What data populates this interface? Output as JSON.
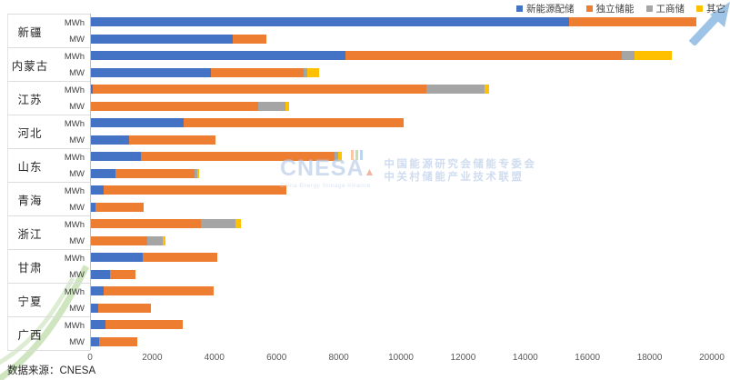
{
  "legend": {
    "items": [
      {
        "label": "新能源配储",
        "color": "#4472C4"
      },
      {
        "label": "独立储能",
        "color": "#ED7D31"
      },
      {
        "label": "工商储",
        "color": "#A5A5A5"
      },
      {
        "label": "其它",
        "color": "#FFC000"
      }
    ]
  },
  "source_note": "数据来源：CNESA",
  "watermark": {
    "logo": "CNESA",
    "logo_sub": "China Energy Storage Alliance",
    "line1": "中国能源研究会储能专委会",
    "line2": "中关村储能产业技术联盟"
  },
  "chart_data": {
    "type": "bar",
    "orientation": "horizontal",
    "stacked": true,
    "grid": false,
    "legend_position": "top-right",
    "series_names": [
      "新能源配储",
      "独立储能",
      "工商储",
      "其它"
    ],
    "colors": [
      "#4472C4",
      "#ED7D31",
      "#A5A5A5",
      "#FFC000"
    ],
    "x_axis": {
      "min": 0,
      "max": 20000,
      "tick_step": 2000,
      "ticks": [
        0,
        2000,
        4000,
        6000,
        8000,
        10000,
        12000,
        14000,
        16000,
        18000,
        20000
      ]
    },
    "row_units": [
      "MWh",
      "MW"
    ],
    "provinces": [
      {
        "name": "新疆",
        "rows": [
          {
            "unit": "MWh",
            "values": [
              15400,
              4100,
              0,
              0
            ]
          },
          {
            "unit": "MW",
            "values": [
              4560,
              1080,
              0,
              0
            ]
          }
        ]
      },
      {
        "name": "内蒙古",
        "rows": [
          {
            "unit": "MWh",
            "values": [
              8200,
              8900,
              400,
              1200
            ]
          },
          {
            "unit": "MW",
            "values": [
              3860,
              3000,
              100,
              380
            ]
          }
        ]
      },
      {
        "name": "江苏",
        "rows": [
          {
            "unit": "MWh",
            "values": [
              60,
              10750,
              1880,
              150
            ]
          },
          {
            "unit": "MW",
            "values": [
              0,
              5380,
              900,
              90
            ]
          }
        ]
      },
      {
        "name": "河北",
        "rows": [
          {
            "unit": "MWh",
            "values": [
              2980,
              7080,
              0,
              0
            ]
          },
          {
            "unit": "MW",
            "values": [
              1230,
              2770,
              0,
              0
            ]
          }
        ]
      },
      {
        "name": "山东",
        "rows": [
          {
            "unit": "MWh",
            "values": [
              1600,
              6250,
              120,
              110
            ]
          },
          {
            "unit": "MW",
            "values": [
              800,
              2530,
              85,
              80
            ]
          }
        ]
      },
      {
        "name": "青海",
        "rows": [
          {
            "unit": "MWh",
            "values": [
              420,
              5880,
              0,
              0
            ]
          },
          {
            "unit": "MW",
            "values": [
              150,
              1540,
              0,
              0
            ]
          }
        ]
      },
      {
        "name": "浙江",
        "rows": [
          {
            "unit": "MWh",
            "values": [
              0,
              3550,
              1120,
              150
            ]
          },
          {
            "unit": "MW",
            "values": [
              0,
              1810,
              500,
              90
            ]
          }
        ]
      },
      {
        "name": "甘肃",
        "rows": [
          {
            "unit": "MWh",
            "values": [
              1680,
              2380,
              0,
              0
            ]
          },
          {
            "unit": "MW",
            "values": [
              620,
              810,
              0,
              0
            ]
          }
        ]
      },
      {
        "name": "宁夏",
        "rows": [
          {
            "unit": "MWh",
            "values": [
              420,
              3530,
              0,
              0
            ]
          },
          {
            "unit": "MW",
            "values": [
              220,
              1710,
              0,
              0
            ]
          }
        ]
      },
      {
        "name": "广西",
        "rows": [
          {
            "unit": "MWh",
            "values": [
              460,
              2500,
              0,
              0
            ]
          },
          {
            "unit": "MW",
            "values": [
              260,
              1240,
              0,
              0
            ]
          }
        ]
      }
    ]
  }
}
